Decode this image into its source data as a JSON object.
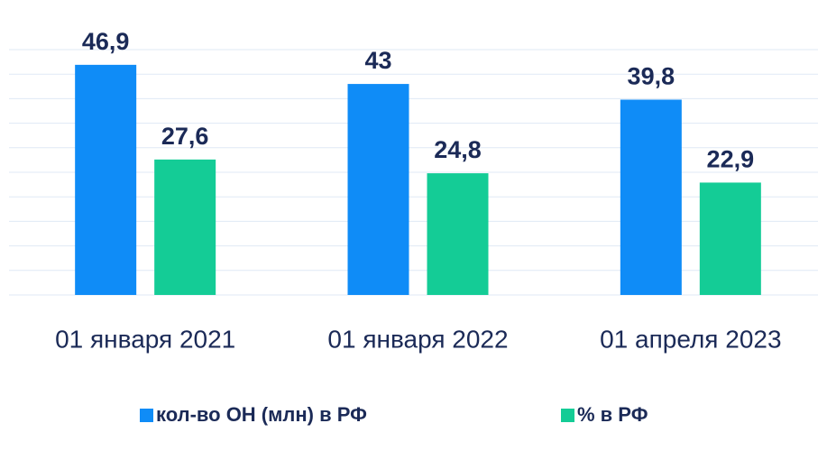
{
  "chart_data": {
    "type": "bar",
    "categories": [
      "01 января 2021",
      "01 января 2022",
      "01 апреля 2023"
    ],
    "series": [
      {
        "name": "кол-во ОН (млн) в РФ",
        "color": "#0f8cf7",
        "values": [
          46.9,
          43,
          39.8
        ],
        "value_labels": [
          "46,9",
          "43",
          "39,8"
        ]
      },
      {
        "name": "% в РФ",
        "color": "#14cc96",
        "values": [
          27.6,
          24.8,
          22.9
        ],
        "value_labels": [
          "27,6",
          "24,8",
          "22,9"
        ]
      }
    ],
    "ylim": [
      0,
      50
    ],
    "yticks": [
      0,
      5,
      10,
      15,
      20,
      25,
      30,
      35,
      40,
      45,
      50
    ],
    "grid": true,
    "legend": "bottom"
  }
}
